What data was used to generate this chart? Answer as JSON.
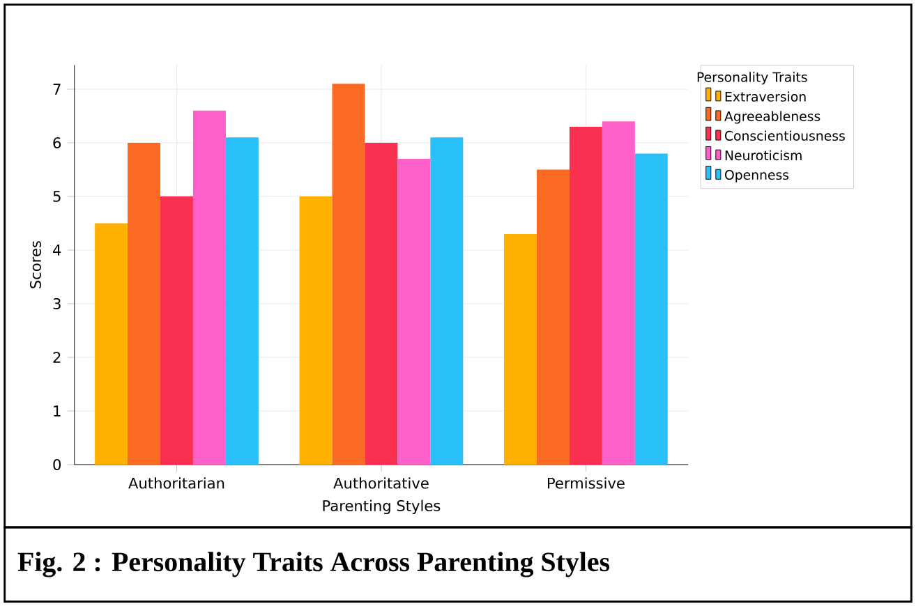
{
  "chart_data": {
    "type": "bar",
    "title": "Fig. 2 :   Personality Traits Across Parenting Styles",
    "xlabel": "Parenting Styles",
    "ylabel": "Scores",
    "legend_title": "Personality Traits",
    "categories": [
      "Authoritarian",
      "Authoritative",
      "Permissive"
    ],
    "series": [
      {
        "name": "Extraversion",
        "color": "#ffb000",
        "values": [
          4.5,
          5.0,
          4.3
        ]
      },
      {
        "name": "Agreeableness",
        "color": "#fb6a22",
        "values": [
          6.0,
          7.1,
          5.5
        ]
      },
      {
        "name": "Conscientiousness",
        "color": "#f9304f",
        "values": [
          5.0,
          6.0,
          6.3
        ]
      },
      {
        "name": "Neuroticism",
        "color": "#ff5fc8",
        "values": [
          6.6,
          5.7,
          6.4
        ]
      },
      {
        "name": "Openness",
        "color": "#29c0f9",
        "values": [
          6.1,
          6.1,
          5.8
        ]
      }
    ],
    "ylim": [
      0,
      7.45
    ],
    "yticks": [
      0,
      1,
      2,
      3,
      4,
      5,
      6,
      7
    ],
    "grid": true,
    "legend": "right"
  }
}
